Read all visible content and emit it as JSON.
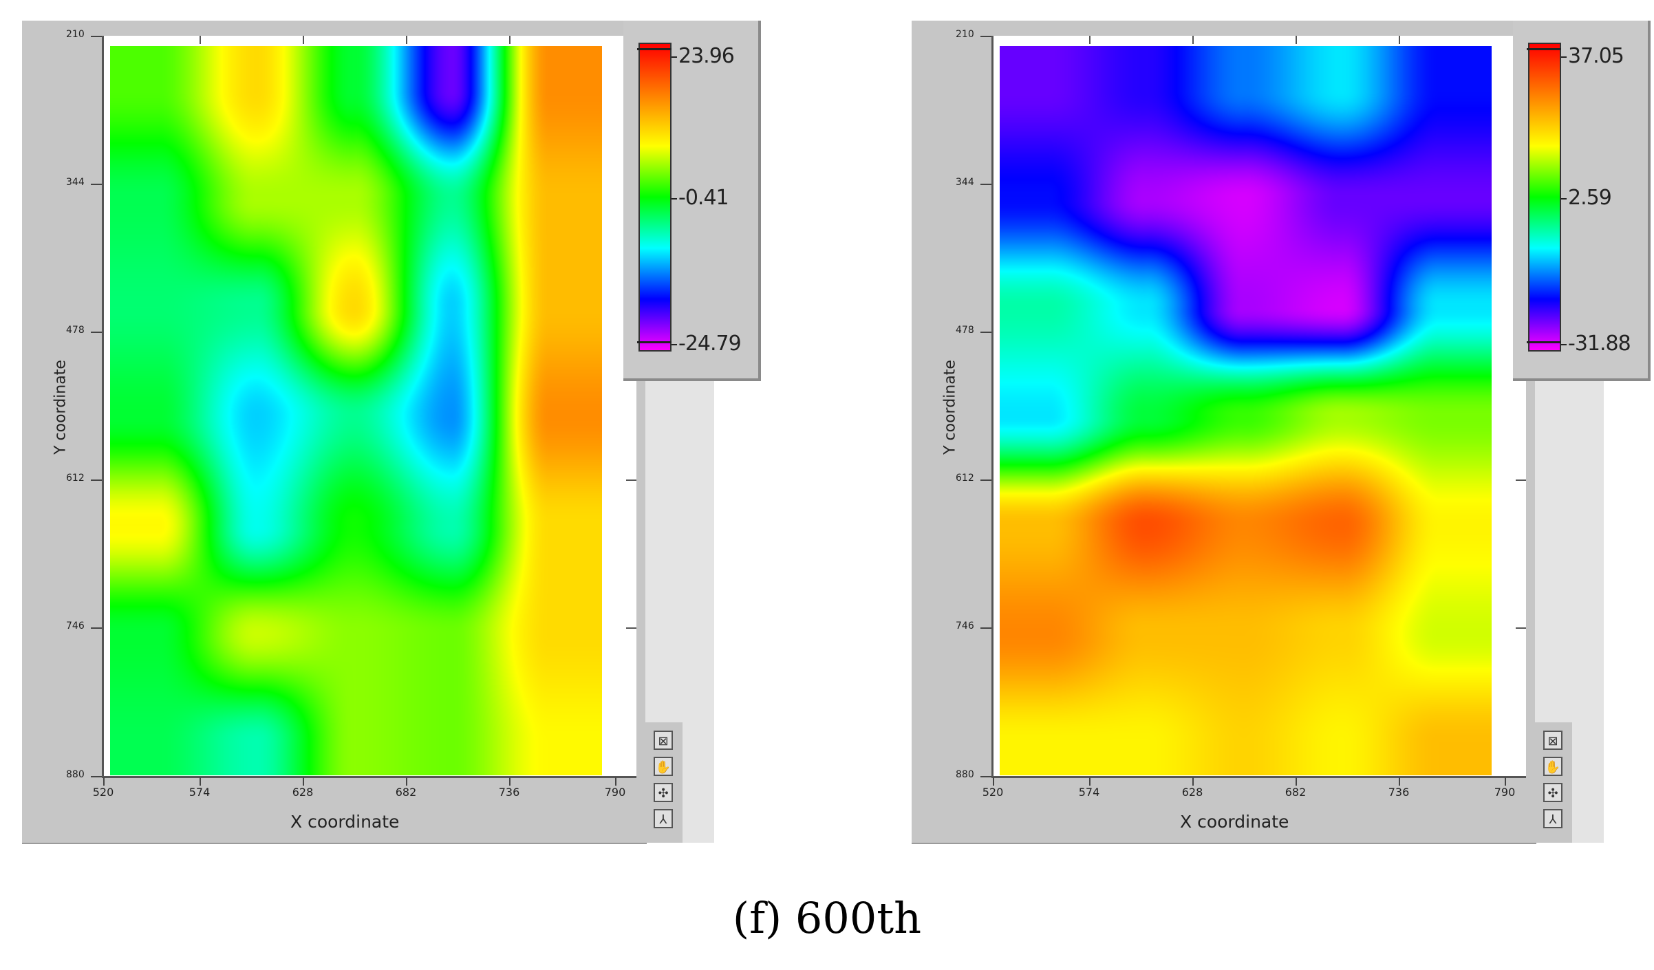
{
  "caption": "(f) 600th",
  "colors": {
    "scale": [
      "#ff00ff",
      "#0000ff",
      "#00ffff",
      "#00ff00",
      "#ffff00",
      "#ff8000",
      "#ff0000"
    ]
  },
  "icons": [
    "zoom-icon",
    "pan-icon",
    "cursor-move-icon",
    "axis-icon"
  ],
  "chart_data": [
    {
      "type": "heatmap",
      "xlabel": "X coordinate",
      "ylabel": "Y coordinate",
      "x_ticks": [
        "520",
        "574",
        "628",
        "682",
        "736",
        "790"
      ],
      "y_ticks": [
        "210",
        "344",
        "478",
        "612",
        "746",
        "880"
      ],
      "xlim": [
        520,
        790
      ],
      "ylim": [
        880,
        210
      ],
      "legend_labels": [
        "23.96",
        "-0.41",
        "-24.79"
      ],
      "zmin": -24.79,
      "zmax": 23.96,
      "x": [
        550,
        600,
        650,
        700,
        750
      ],
      "y": [
        250,
        350,
        450,
        550,
        650,
        750,
        850
      ],
      "z": [
        [
          2,
          10,
          -2,
          -20,
          15
        ],
        [
          -3,
          5,
          5,
          -5,
          12
        ],
        [
          -4,
          -5,
          10,
          -10,
          12
        ],
        [
          -2,
          -10,
          -5,
          -12,
          15
        ],
        [
          8,
          -8,
          0,
          -6,
          10
        ],
        [
          -2,
          6,
          4,
          3,
          10
        ],
        [
          -3,
          -6,
          4,
          3,
          8
        ]
      ]
    },
    {
      "type": "heatmap",
      "xlabel": "X coordinate",
      "ylabel": "Y coordinate",
      "x_ticks": [
        "520",
        "574",
        "628",
        "682",
        "736",
        "790"
      ],
      "y_ticks": [
        "210",
        "344",
        "478",
        "612",
        "746",
        "880"
      ],
      "xlim": [
        520,
        790
      ],
      "ylim": [
        880,
        210
      ],
      "legend_labels": [
        "37.05",
        "2.59",
        "-31.88"
      ],
      "zmin": -31.88,
      "zmax": 37.05,
      "x": [
        550,
        600,
        650,
        700,
        750
      ],
      "y": [
        250,
        350,
        450,
        550,
        650,
        750,
        850
      ],
      "z": [
        [
          -25,
          -22,
          -15,
          -10,
          -20
        ],
        [
          -20,
          -28,
          -30,
          -25,
          -25
        ],
        [
          -5,
          -10,
          -28,
          -30,
          -10
        ],
        [
          -10,
          0,
          5,
          10,
          8
        ],
        [
          20,
          30,
          25,
          28,
          15
        ],
        [
          25,
          20,
          20,
          18,
          12
        ],
        [
          15,
          15,
          18,
          15,
          20
        ]
      ]
    }
  ]
}
